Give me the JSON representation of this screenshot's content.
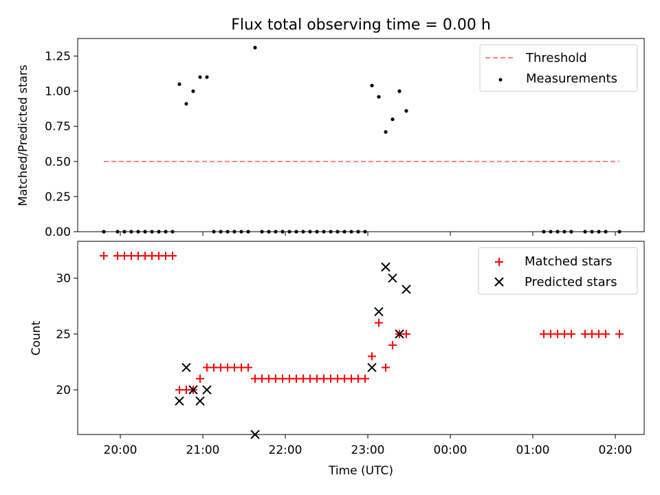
{
  "title": "Flux total observing time = 0.00 h",
  "colors": {
    "threshold": "#ff7f7f",
    "measurements": "#000000",
    "matched": "#ff0000",
    "predicted": "#000000"
  },
  "chart_data": [
    {
      "type": "scatter",
      "ylabel": "Matched/Predicted stars",
      "ylim": [
        0,
        1.375
      ],
      "yticks": [
        "0.00",
        "0.25",
        "0.50",
        "0.75",
        "1.00",
        "1.25"
      ],
      "xlim": [
        "19:29",
        "02:21"
      ],
      "xticks": [
        "20:00",
        "21:00",
        "22:00",
        "23:00",
        "00:00",
        "01:00",
        "02:00"
      ],
      "legend": {
        "position": "top-right",
        "entries": [
          "Threshold",
          "Measurements"
        ]
      },
      "threshold": {
        "name": "Threshold",
        "value": 0.5,
        "x_range": [
          "19:48",
          "02:03"
        ],
        "style": "dashed"
      },
      "series": [
        {
          "name": "Measurements",
          "points": [
            [
              "19:48",
              0.0
            ],
            [
              "19:58",
              0.0
            ],
            [
              "20:03",
              0.0
            ],
            [
              "20:08",
              0.0
            ],
            [
              "20:13",
              0.0
            ],
            [
              "20:18",
              0.0
            ],
            [
              "20:23",
              0.0
            ],
            [
              "20:28",
              0.0
            ],
            [
              "20:33",
              0.0
            ],
            [
              "20:38",
              0.0
            ],
            [
              "20:43",
              1.05
            ],
            [
              "20:48",
              0.91
            ],
            [
              "20:53",
              1.0
            ],
            [
              "20:58",
              1.1
            ],
            [
              "21:03",
              1.1
            ],
            [
              "21:08",
              0.0
            ],
            [
              "21:13",
              0.0
            ],
            [
              "21:18",
              0.0
            ],
            [
              "21:23",
              0.0
            ],
            [
              "21:28",
              0.0
            ],
            [
              "21:33",
              0.0
            ],
            [
              "21:38",
              1.31
            ],
            [
              "21:43",
              0.0
            ],
            [
              "21:48",
              0.0
            ],
            [
              "21:53",
              0.0
            ],
            [
              "21:58",
              0.0
            ],
            [
              "22:03",
              0.0
            ],
            [
              "22:08",
              0.0
            ],
            [
              "22:13",
              0.0
            ],
            [
              "22:18",
              0.0
            ],
            [
              "22:23",
              0.0
            ],
            [
              "22:28",
              0.0
            ],
            [
              "22:33",
              0.0
            ],
            [
              "22:38",
              0.0
            ],
            [
              "22:43",
              0.0
            ],
            [
              "22:48",
              0.0
            ],
            [
              "22:53",
              0.0
            ],
            [
              "22:58",
              0.0
            ],
            [
              "23:03",
              1.04
            ],
            [
              "23:08",
              0.96
            ],
            [
              "23:13",
              0.71
            ],
            [
              "23:18",
              0.8
            ],
            [
              "23:23",
              1.0
            ],
            [
              "23:28",
              0.86
            ],
            [
              "01:08",
              0.0
            ],
            [
              "01:13",
              0.0
            ],
            [
              "01:18",
              0.0
            ],
            [
              "01:23",
              0.0
            ],
            [
              "01:28",
              0.0
            ],
            [
              "01:38",
              0.0
            ],
            [
              "01:43",
              0.0
            ],
            [
              "01:48",
              0.0
            ],
            [
              "01:53",
              0.0
            ],
            [
              "02:03",
              0.0
            ]
          ]
        }
      ]
    },
    {
      "type": "scatter",
      "xlabel": "Time (UTC)",
      "ylabel": "Count",
      "ylim": [
        16.0,
        33.3
      ],
      "yticks": [
        "20",
        "25",
        "30"
      ],
      "xlim": [
        "19:29",
        "02:21"
      ],
      "xticks": [
        "20:00",
        "21:00",
        "22:00",
        "23:00",
        "00:00",
        "01:00",
        "02:00"
      ],
      "legend": {
        "position": "top-right",
        "entries": [
          "Matched stars",
          "Predicted stars"
        ]
      },
      "series": [
        {
          "name": "Matched stars",
          "marker": "plus",
          "points": [
            [
              "19:48",
              32
            ],
            [
              "19:58",
              32
            ],
            [
              "20:03",
              32
            ],
            [
              "20:08",
              32
            ],
            [
              "20:13",
              32
            ],
            [
              "20:18",
              32
            ],
            [
              "20:23",
              32
            ],
            [
              "20:28",
              32
            ],
            [
              "20:33",
              32
            ],
            [
              "20:38",
              32
            ],
            [
              "20:43",
              20
            ],
            [
              "20:48",
              20
            ],
            [
              "20:53",
              20
            ],
            [
              "20:58",
              21
            ],
            [
              "21:03",
              22
            ],
            [
              "21:08",
              22
            ],
            [
              "21:13",
              22
            ],
            [
              "21:18",
              22
            ],
            [
              "21:23",
              22
            ],
            [
              "21:28",
              22
            ],
            [
              "21:33",
              22
            ],
            [
              "21:38",
              21
            ],
            [
              "21:43",
              21
            ],
            [
              "21:48",
              21
            ],
            [
              "21:53",
              21
            ],
            [
              "21:58",
              21
            ],
            [
              "22:03",
              21
            ],
            [
              "22:08",
              21
            ],
            [
              "22:13",
              21
            ],
            [
              "22:18",
              21
            ],
            [
              "22:23",
              21
            ],
            [
              "22:28",
              21
            ],
            [
              "22:33",
              21
            ],
            [
              "22:38",
              21
            ],
            [
              "22:43",
              21
            ],
            [
              "22:48",
              21
            ],
            [
              "22:53",
              21
            ],
            [
              "22:58",
              21
            ],
            [
              "23:03",
              23
            ],
            [
              "23:08",
              26
            ],
            [
              "23:13",
              22
            ],
            [
              "23:18",
              24
            ],
            [
              "23:23",
              25
            ],
            [
              "23:28",
              25
            ],
            [
              "01:08",
              25
            ],
            [
              "01:13",
              25
            ],
            [
              "01:18",
              25
            ],
            [
              "01:23",
              25
            ],
            [
              "01:28",
              25
            ],
            [
              "01:38",
              25
            ],
            [
              "01:43",
              25
            ],
            [
              "01:48",
              25
            ],
            [
              "01:53",
              25
            ],
            [
              "02:03",
              25
            ]
          ]
        },
        {
          "name": "Predicted stars",
          "marker": "x",
          "points": [
            [
              "20:43",
              19
            ],
            [
              "20:48",
              22
            ],
            [
              "20:53",
              20
            ],
            [
              "20:58",
              19
            ],
            [
              "21:03",
              20
            ],
            [
              "21:38",
              16
            ],
            [
              "23:03",
              22
            ],
            [
              "23:08",
              27
            ],
            [
              "23:13",
              31
            ],
            [
              "23:18",
              30
            ],
            [
              "23:23",
              25
            ],
            [
              "23:28",
              29
            ]
          ]
        }
      ]
    }
  ]
}
